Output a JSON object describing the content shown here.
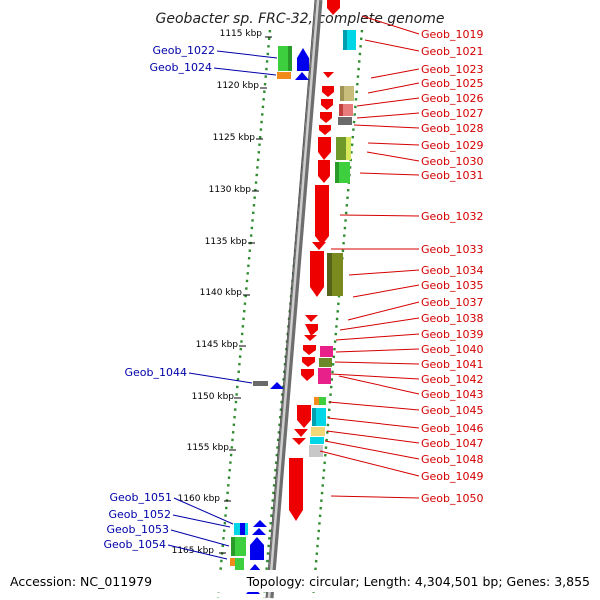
{
  "title": "Geobacter sp. FRC-32, complete genome",
  "footer": {
    "accession": "Accession: NC_011979",
    "summary": "Topology: circular; Length: 4,304,501 bp; Genes: 3,855"
  },
  "colors": {
    "backbone": "#8c8c8c",
    "track_dots": "#2e8b2e",
    "right_label": "#d40000",
    "left_label": "#0000a8",
    "forward_gene": "#ee0000",
    "reverse_gene": "#0000ee"
  },
  "ticks": [
    {
      "label": "1115 kbp"
    },
    {
      "label": "1120 kbp"
    },
    {
      "label": "1125 kbp"
    },
    {
      "label": "1130 kbp"
    },
    {
      "label": "1135 kbp"
    },
    {
      "label": "1140 kbp"
    },
    {
      "label": "1145 kbp"
    },
    {
      "label": "1150 kbp"
    },
    {
      "label": "1155 kbp"
    },
    {
      "label": "1160 kbp"
    },
    {
      "label": "1165 kbp"
    }
  ],
  "right_genes": [
    {
      "label": "Geob_1019"
    },
    {
      "label": "Geob_1021"
    },
    {
      "label": "Geob_1023"
    },
    {
      "label": "Geob_1025"
    },
    {
      "label": "Geob_1026"
    },
    {
      "label": "Geob_1027"
    },
    {
      "label": "Geob_1028"
    },
    {
      "label": "Geob_1029"
    },
    {
      "label": "Geob_1030"
    },
    {
      "label": "Geob_1031"
    },
    {
      "label": "Geob_1032"
    },
    {
      "label": "Geob_1033"
    },
    {
      "label": "Geob_1034"
    },
    {
      "label": "Geob_1035"
    },
    {
      "label": "Geob_1037"
    },
    {
      "label": "Geob_1038"
    },
    {
      "label": "Geob_1039"
    },
    {
      "label": "Geob_1040"
    },
    {
      "label": "Geob_1041"
    },
    {
      "label": "Geob_1042"
    },
    {
      "label": "Geob_1043"
    },
    {
      "label": "Geob_1045"
    },
    {
      "label": "Geob_1046"
    },
    {
      "label": "Geob_1047"
    },
    {
      "label": "Geob_1048"
    },
    {
      "label": "Geob_1049"
    },
    {
      "label": "Geob_1050"
    }
  ],
  "left_genes": [
    {
      "label": "Geob_1022"
    },
    {
      "label": "Geob_1024"
    },
    {
      "label": "Geob_1044"
    },
    {
      "label": "Geob_1051"
    },
    {
      "label": "Geob_1052"
    },
    {
      "label": "Geob_1053"
    },
    {
      "label": "Geob_1054"
    }
  ]
}
